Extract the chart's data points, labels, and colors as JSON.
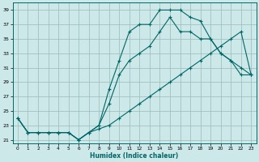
{
  "xlabel": "Humidex (Indice chaleur)",
  "bg_color": "#cce8e8",
  "grid_color": "#99bbbb",
  "line_color": "#006666",
  "xlim": [
    -0.5,
    23.5
  ],
  "ylim": [
    20.5,
    40.0
  ],
  "xticks": [
    0,
    1,
    2,
    3,
    4,
    5,
    6,
    7,
    8,
    9,
    10,
    11,
    12,
    13,
    14,
    15,
    16,
    17,
    18,
    19,
    20,
    21,
    22,
    23
  ],
  "yticks": [
    21,
    23,
    25,
    27,
    29,
    31,
    33,
    35,
    37,
    39
  ],
  "curve1_x": [
    0,
    1,
    2,
    3,
    4,
    5,
    6,
    7,
    8,
    9,
    10,
    11,
    12,
    13,
    14,
    15,
    16,
    17,
    18,
    19,
    20,
    21,
    22,
    23
  ],
  "curve1_y": [
    24,
    22,
    22,
    22,
    22,
    22,
    21,
    22,
    23,
    28,
    32,
    36,
    37,
    37,
    39,
    39,
    39,
    38,
    37.5,
    35,
    33,
    32,
    30,
    30
  ],
  "curve2_x": [
    0,
    1,
    2,
    3,
    4,
    5,
    6,
    7,
    8,
    9,
    10,
    11,
    12,
    13,
    14,
    15,
    16,
    17,
    18,
    19,
    20,
    21,
    22,
    23
  ],
  "curve2_y": [
    24,
    22,
    22,
    22,
    22,
    22,
    21,
    22,
    22.5,
    23,
    24,
    25,
    26,
    27,
    28,
    29,
    30,
    31,
    32,
    33,
    34,
    35,
    36,
    30
  ],
  "curve3_x": [
    0,
    1,
    2,
    3,
    4,
    5,
    6,
    7,
    8,
    9,
    10,
    11,
    12,
    13,
    14,
    15,
    16,
    17,
    18,
    19,
    20,
    21,
    22,
    23
  ],
  "curve3_y": [
    24,
    22,
    22,
    22,
    22,
    22,
    21,
    22,
    23,
    26,
    30,
    32,
    33,
    34,
    36,
    38,
    36,
    36,
    35,
    35,
    33,
    32,
    31,
    30
  ]
}
